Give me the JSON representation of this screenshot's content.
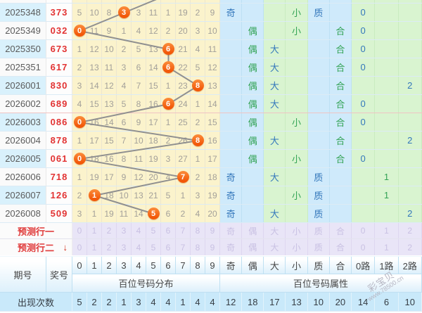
{
  "colors": {
    "hit_circle_orange": "#f25708",
    "trend_line_gray": "#909090",
    "draw_number_red": "#e23333",
    "blue_attr_text": "#3377bb",
    "green_attr_text": "#33a355",
    "grid_yellow_bg": "#fbf3cc",
    "attr_blue_bg": "#cfeafb",
    "attr_green_bg": "#d9f4d0",
    "prediction_purple_bg": "#e9e5f7",
    "alt_row_blue_bg": "#d9f1fc",
    "footer_blue_bg": "#c9e9fa"
  },
  "watermark": {
    "brand": "彩宝贝",
    "site": "www.78500.cn"
  },
  "chart_data": {
    "type": "table",
    "header": {
      "period": "期号",
      "number": "奖号",
      "digits": [
        "0",
        "1",
        "2",
        "3",
        "4",
        "5",
        "6",
        "7",
        "8",
        "9"
      ],
      "attrs": [
        "奇",
        "偶",
        "大",
        "小",
        "质",
        "合",
        "0路",
        "1路",
        "2路"
      ],
      "digit_group": "百位号码分布",
      "attr_group": "百位号码属性"
    },
    "trend": {
      "prev_hit_col": 6
    },
    "rows": [
      {
        "period": "2025348",
        "number": "373",
        "hit": 3,
        "miss": [
          "5",
          "10",
          "8",
          "3",
          "3",
          "11",
          "1",
          "19",
          "2",
          "9"
        ],
        "attrs": [
          "奇",
          "",
          "",
          "小",
          "质",
          "",
          "0",
          "",
          ""
        ]
      },
      {
        "period": "2025349",
        "number": "032",
        "hit": 0,
        "miss": [
          "0",
          "11",
          "9",
          "1",
          "4",
          "12",
          "2",
          "20",
          "3",
          "10"
        ],
        "attrs": [
          "",
          "偶",
          "",
          "小",
          "",
          "合",
          "0",
          "",
          ""
        ]
      },
      {
        "period": "2025350",
        "number": "673",
        "hit": 6,
        "miss": [
          "1",
          "12",
          "10",
          "2",
          "5",
          "13",
          "6",
          "21",
          "4",
          "11"
        ],
        "attrs": [
          "",
          "偶",
          "大",
          "",
          "",
          "合",
          "0",
          "",
          ""
        ]
      },
      {
        "period": "2025351",
        "number": "617",
        "hit": 6,
        "miss": [
          "2",
          "13",
          "11",
          "3",
          "6",
          "14",
          "6",
          "22",
          "5",
          "12"
        ],
        "attrs": [
          "",
          "偶",
          "大",
          "",
          "",
          "合",
          "0",
          "",
          ""
        ]
      },
      {
        "period": "2026001",
        "number": "830",
        "hit": 8,
        "miss": [
          "3",
          "14",
          "12",
          "4",
          "7",
          "15",
          "1",
          "23",
          "8",
          "13"
        ],
        "attrs": [
          "",
          "偶",
          "大",
          "",
          "",
          "合",
          "",
          "",
          "2"
        ]
      },
      {
        "period": "2026002",
        "number": "689",
        "hit": 6,
        "miss": [
          "4",
          "15",
          "13",
          "5",
          "8",
          "16",
          "6",
          "24",
          "1",
          "14"
        ],
        "attrs": [
          "",
          "偶",
          "大",
          "",
          "",
          "合",
          "0",
          "",
          ""
        ],
        "divider": true
      },
      {
        "period": "2026003",
        "number": "086",
        "hit": 0,
        "miss": [
          "0",
          "16",
          "14",
          "6",
          "9",
          "17",
          "1",
          "25",
          "2",
          "15"
        ],
        "attrs": [
          "",
          "偶",
          "",
          "小",
          "",
          "合",
          "0",
          "",
          ""
        ]
      },
      {
        "period": "2026004",
        "number": "878",
        "hit": 8,
        "miss": [
          "1",
          "17",
          "15",
          "7",
          "10",
          "18",
          "2",
          "26",
          "8",
          "16"
        ],
        "attrs": [
          "",
          "偶",
          "大",
          "",
          "",
          "合",
          "",
          "",
          "2"
        ]
      },
      {
        "period": "2026005",
        "number": "061",
        "hit": 0,
        "miss": [
          "0",
          "18",
          "16",
          "8",
          "11",
          "19",
          "3",
          "27",
          "1",
          "17"
        ],
        "attrs": [
          "",
          "偶",
          "",
          "小",
          "",
          "合",
          "0",
          "",
          ""
        ]
      },
      {
        "period": "2026006",
        "number": "718",
        "hit": 7,
        "miss": [
          "1",
          "19",
          "17",
          "9",
          "12",
          "20",
          "4",
          "7",
          "2",
          "18"
        ],
        "attrs": [
          "奇",
          "",
          "大",
          "",
          "质",
          "",
          "",
          "1",
          ""
        ]
      },
      {
        "period": "2026007",
        "number": "126",
        "hit": 1,
        "miss": [
          "2",
          "1",
          "18",
          "10",
          "13",
          "21",
          "5",
          "1",
          "3",
          "19"
        ],
        "attrs": [
          "奇",
          "",
          "",
          "小",
          "质",
          "",
          "",
          "1",
          ""
        ]
      },
      {
        "period": "2026008",
        "number": "509",
        "hit": 5,
        "miss": [
          "3",
          "1",
          "19",
          "11",
          "14",
          "5",
          "6",
          "2",
          "4",
          "20"
        ],
        "attrs": [
          "奇",
          "",
          "大",
          "",
          "质",
          "",
          "",
          "",
          "2"
        ]
      }
    ],
    "prediction": {
      "rows": [
        {
          "label": "预测行一",
          "arrow": ""
        },
        {
          "label": "预测行二",
          "arrow": "↓"
        }
      ],
      "cells": [
        "0",
        "1",
        "2",
        "3",
        "4",
        "5",
        "6",
        "7",
        "8",
        "9",
        "奇",
        "偶",
        "大",
        "小",
        "质",
        "合",
        "0",
        "1",
        "2"
      ]
    },
    "footer": {
      "label": "出现次数",
      "values": [
        "5",
        "2",
        "2",
        "1",
        "3",
        "4",
        "4",
        "1",
        "4",
        "4",
        "12",
        "18",
        "17",
        "13",
        "10",
        "20",
        "14",
        "6",
        "10"
      ]
    }
  }
}
